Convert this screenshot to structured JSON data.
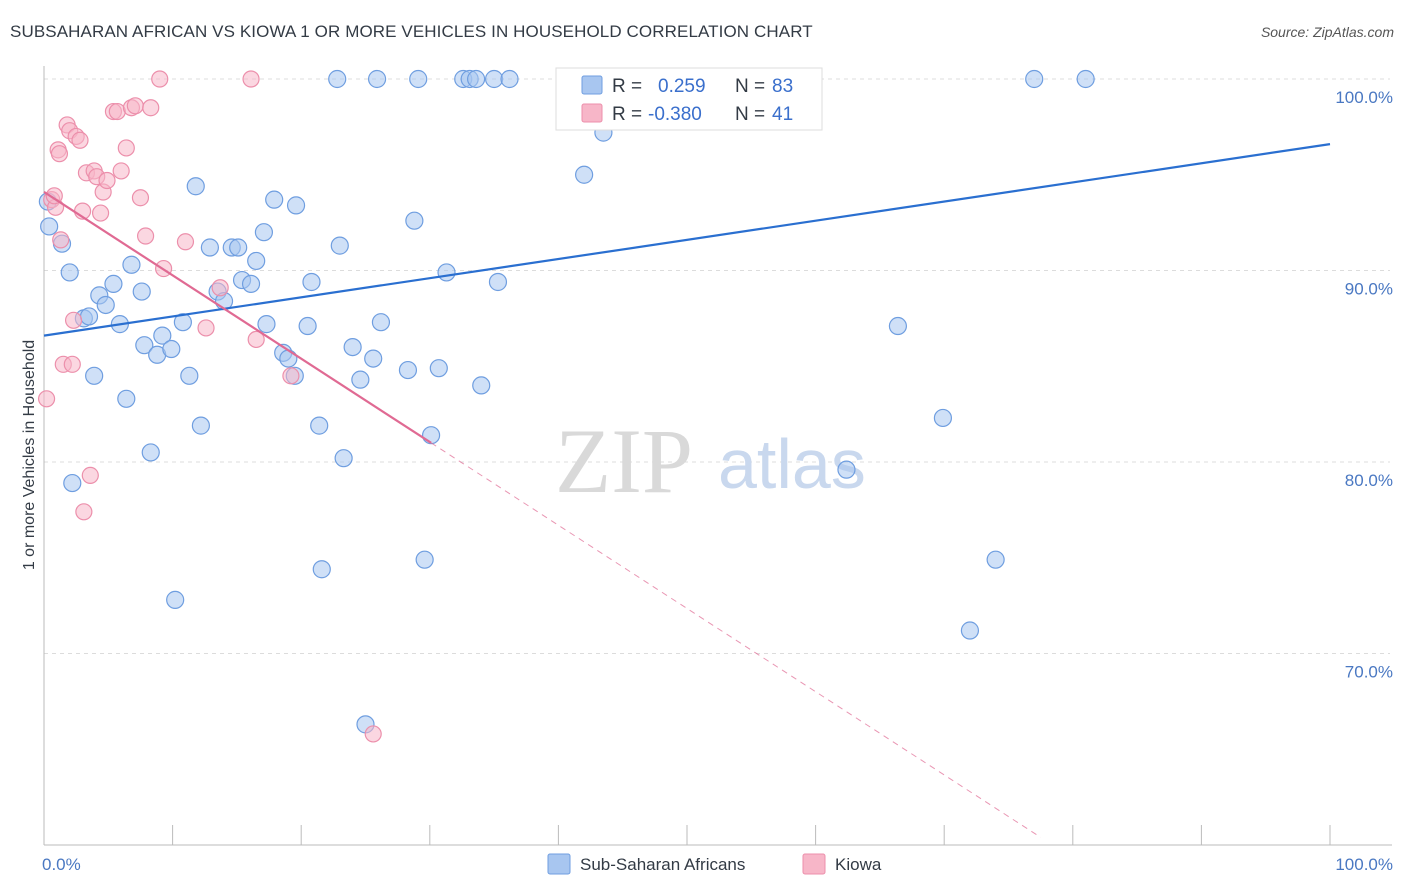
{
  "header": {
    "title": "SUBSAHARAN AFRICAN VS KIOWA 1 OR MORE VEHICLES IN HOUSEHOLD CORRELATION CHART",
    "source": "Source: ZipAtlas.com"
  },
  "watermark": {
    "zip": "ZIP",
    "atlas": "atlas"
  },
  "legend": {
    "r_label": "R =",
    "n_label": "N =",
    "rows": [
      {
        "r": "0.259",
        "n": "83",
        "color": "#a8c6f0"
      },
      {
        "r": "-0.380",
        "n": "41",
        "color": "#f7b6c8"
      }
    ]
  },
  "bottom_legend": [
    {
      "label": "Sub-Saharan Africans",
      "color": "#a8c6f0"
    },
    {
      "label": "Kiowa",
      "color": "#f7b6c8"
    }
  ],
  "colors": {
    "blue_fill": "#a8c6f0",
    "blue_stroke": "#6f9ee0",
    "blue_line": "#2a6fd0",
    "pink_fill": "#f7b6c8",
    "pink_stroke": "#ec8fab",
    "pink_line": "#e06a93",
    "grid": "#dcdcdc",
    "axis_text": "#4a78c2"
  },
  "chart_data": {
    "type": "scatter",
    "title": "SUBSAHARAN AFRICAN VS KIOWA 1 OR MORE VEHICLES IN HOUSEHOLD CORRELATION CHART",
    "xlabel": "",
    "ylabel": "1 or more Vehicles in Household",
    "xlim": [
      0,
      100
    ],
    "ylim": [
      60,
      100
    ],
    "x_tick_labels": [
      "0.0%",
      "100.0%"
    ],
    "y_ticks": [
      70,
      80,
      90,
      100
    ],
    "y_tick_labels": [
      "70.0%",
      "80.0%",
      "90.0%",
      "100.0%"
    ],
    "grid": true,
    "legend_position": "top-center",
    "series": [
      {
        "name": "Sub-Saharan Africans",
        "r": 0.259,
        "n": 83,
        "trend": {
          "x": [
            0,
            100
          ],
          "y": [
            86.6,
            96.6
          ]
        },
        "points": [
          [
            0.3,
            93.6
          ],
          [
            0.4,
            92.3
          ],
          [
            1.4,
            91.4
          ],
          [
            2.0,
            89.9
          ],
          [
            2.2,
            78.9
          ],
          [
            3.1,
            87.5
          ],
          [
            3.5,
            87.6
          ],
          [
            3.9,
            84.5
          ],
          [
            4.3,
            88.7
          ],
          [
            4.8,
            88.2
          ],
          [
            5.4,
            89.3
          ],
          [
            5.9,
            87.2
          ],
          [
            6.4,
            83.3
          ],
          [
            6.8,
            90.3
          ],
          [
            7.6,
            88.9
          ],
          [
            7.8,
            86.1
          ],
          [
            8.3,
            80.5
          ],
          [
            8.8,
            85.6
          ],
          [
            9.2,
            86.6
          ],
          [
            9.9,
            85.9
          ],
          [
            10.2,
            72.8
          ],
          [
            10.8,
            87.3
          ],
          [
            11.3,
            84.5
          ],
          [
            11.8,
            94.4
          ],
          [
            12.2,
            81.9
          ],
          [
            12.9,
            91.2
          ],
          [
            13.5,
            88.9
          ],
          [
            14.0,
            88.4
          ],
          [
            14.6,
            91.2
          ],
          [
            15.1,
            91.2
          ],
          [
            15.4,
            89.5
          ],
          [
            16.1,
            89.3
          ],
          [
            16.5,
            90.5
          ],
          [
            17.1,
            92.0
          ],
          [
            17.3,
            87.2
          ],
          [
            17.9,
            93.7
          ],
          [
            18.6,
            85.7
          ],
          [
            19.0,
            85.4
          ],
          [
            19.5,
            84.5
          ],
          [
            19.6,
            93.4
          ],
          [
            20.5,
            87.1
          ],
          [
            20.8,
            89.4
          ],
          [
            21.4,
            81.9
          ],
          [
            21.6,
            74.4
          ],
          [
            22.8,
            100.0
          ],
          [
            23.0,
            91.3
          ],
          [
            23.3,
            80.2
          ],
          [
            24.0,
            86.0
          ],
          [
            24.6,
            84.3
          ],
          [
            25.0,
            66.3
          ],
          [
            25.6,
            85.4
          ],
          [
            25.9,
            100.0
          ],
          [
            26.2,
            87.3
          ],
          [
            28.3,
            84.8
          ],
          [
            28.8,
            92.6
          ],
          [
            29.1,
            100.0
          ],
          [
            29.6,
            74.9
          ],
          [
            30.1,
            81.4
          ],
          [
            30.7,
            84.9
          ],
          [
            31.3,
            89.9
          ],
          [
            32.6,
            100.0
          ],
          [
            33.1,
            100.0
          ],
          [
            33.6,
            100.0
          ],
          [
            34.0,
            84.0
          ],
          [
            35.0,
            100.0
          ],
          [
            35.3,
            89.4
          ],
          [
            36.2,
            100.0
          ],
          [
            40.5,
            100.0
          ],
          [
            40.8,
            100.0
          ],
          [
            42.0,
            95.0
          ],
          [
            43.5,
            97.2
          ],
          [
            47.0,
            100.0
          ],
          [
            49.0,
            100.0
          ],
          [
            51.5,
            100.0
          ],
          [
            59.2,
            100.0
          ],
          [
            59.5,
            100.0
          ],
          [
            62.4,
            79.6
          ],
          [
            66.4,
            87.1
          ],
          [
            69.9,
            82.3
          ],
          [
            72.0,
            71.2
          ],
          [
            74.0,
            74.9
          ],
          [
            77.0,
            100.0
          ],
          [
            81.0,
            100.0
          ]
        ]
      },
      {
        "name": "Kiowa",
        "r": -0.38,
        "n": 41,
        "trend": {
          "x": [
            0,
            30.1
          ],
          "y": [
            94.1,
            81.0
          ]
        },
        "trend_extension": {
          "x": [
            30.1,
            77.5
          ],
          "y": [
            81.0,
            60.4
          ]
        },
        "points": [
          [
            0.2,
            83.3
          ],
          [
            0.6,
            93.7
          ],
          [
            0.9,
            93.3
          ],
          [
            1.1,
            96.3
          ],
          [
            1.3,
            91.6
          ],
          [
            1.5,
            85.1
          ],
          [
            1.8,
            97.6
          ],
          [
            2.0,
            97.3
          ],
          [
            2.2,
            85.1
          ],
          [
            2.3,
            87.4
          ],
          [
            2.5,
            97.0
          ],
          [
            2.8,
            96.8
          ],
          [
            3.1,
            77.4
          ],
          [
            3.3,
            95.1
          ],
          [
            3.6,
            79.3
          ],
          [
            3.9,
            95.2
          ],
          [
            4.1,
            94.9
          ],
          [
            4.6,
            94.1
          ],
          [
            4.9,
            94.7
          ],
          [
            5.4,
            98.3
          ],
          [
            5.7,
            98.3
          ],
          [
            6.0,
            95.2
          ],
          [
            6.4,
            96.4
          ],
          [
            6.8,
            98.5
          ],
          [
            7.1,
            98.6
          ],
          [
            7.5,
            93.8
          ],
          [
            8.3,
            98.5
          ],
          [
            9.0,
            100.0
          ],
          [
            9.3,
            90.1
          ],
          [
            11.0,
            91.5
          ],
          [
            12.6,
            87.0
          ],
          [
            13.7,
            89.1
          ],
          [
            16.1,
            100.0
          ],
          [
            16.5,
            86.4
          ],
          [
            19.2,
            84.5
          ],
          [
            25.6,
            65.8
          ],
          [
            0.8,
            93.9
          ],
          [
            1.2,
            96.1
          ],
          [
            3.0,
            93.1
          ],
          [
            4.4,
            93.0
          ],
          [
            7.9,
            91.8
          ]
        ]
      }
    ]
  }
}
